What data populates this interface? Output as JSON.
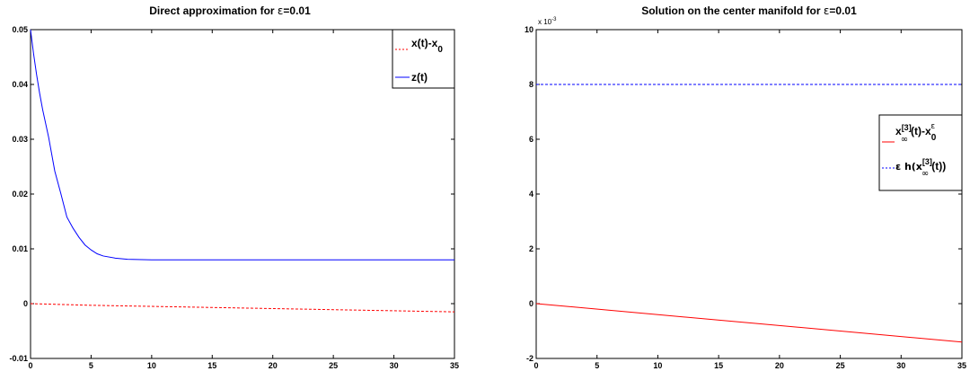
{
  "chart_data": [
    {
      "type": "line",
      "title_main": "Direct approximation for ",
      "title_eps": "ε",
      "title_tail": "=0.01",
      "xlim": [
        0,
        35
      ],
      "ylim": [
        -0.01,
        0.05
      ],
      "x_ticks": [
        "0",
        "5",
        "10",
        "15",
        "20",
        "25",
        "30",
        "35"
      ],
      "y_ticks": [
        "-0.01",
        "0",
        "0.01",
        "0.02",
        "0.03",
        "0.04",
        "0.05"
      ],
      "series": [
        {
          "name": "x(t)-x0",
          "legend_main": "x(t)-x",
          "legend_sub": "0",
          "style": "dashed",
          "color": "#ff0000",
          "x": [
            0,
            5,
            10,
            15,
            20,
            25,
            30,
            35
          ],
          "y": [
            0,
            -0.0003,
            -0.0005,
            -0.0007,
            -0.0009,
            -0.0011,
            -0.0013,
            -0.0015
          ]
        },
        {
          "name": "z(t)",
          "legend_main": "z(t)",
          "style": "solid",
          "color": "#0000ff",
          "x": [
            0,
            0.25,
            0.5,
            0.75,
            1,
            1.5,
            2,
            2.5,
            3,
            3.5,
            4,
            4.5,
            5,
            5.5,
            6,
            7,
            8,
            10,
            15,
            20,
            25,
            30,
            35
          ],
          "y": [
            0.05,
            0.0456,
            0.0418,
            0.0384,
            0.0354,
            0.0303,
            0.0242,
            0.0201,
            0.0158,
            0.0138,
            0.0121,
            0.0107,
            0.0098,
            0.0091,
            0.0087,
            0.0083,
            0.0081,
            0.008,
            0.008,
            0.008,
            0.008,
            0.008,
            0.008
          ]
        }
      ],
      "legend_placement": "top-right"
    },
    {
      "type": "line",
      "title_main": "Solution on the center manifold for ",
      "title_eps": "ε",
      "title_tail": "=0.01",
      "y_multiplier_base": "x 10",
      "y_multiplier_exp": "-3",
      "xlim": [
        0,
        35
      ],
      "ylim": [
        -2,
        10
      ],
      "x_ticks": [
        "0",
        "5",
        "10",
        "15",
        "20",
        "25",
        "30",
        "35"
      ],
      "y_ticks": [
        "-2",
        "0",
        "2",
        "4",
        "6",
        "8",
        "10"
      ],
      "series": [
        {
          "name": "x∞[3](t)-x0ε",
          "legend_main": "x",
          "legend_sup": "[3]",
          "legend_sub": "∞",
          "legend_mid": "(t)-x",
          "legend_sub2": "0",
          "legend_sup2": "ε",
          "style": "solid",
          "color": "#ff0000",
          "x": [
            0,
            35
          ],
          "y": [
            0,
            -1.4
          ]
        },
        {
          "name": "ε h(x∞[3](t))",
          "legend_pre": "ε h(x",
          "legend_sup": "[3]",
          "legend_sub": "∞",
          "legend_post": "(t))",
          "style": "dashed",
          "color": "#0000ff",
          "x": [
            0,
            35
          ],
          "y": [
            8,
            8
          ]
        }
      ],
      "legend_placement": "top-right"
    }
  ]
}
